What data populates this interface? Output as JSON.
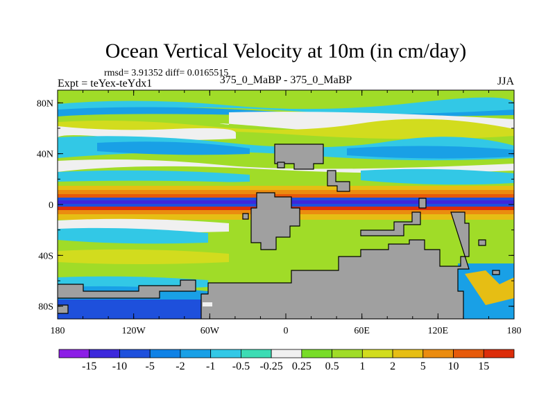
{
  "chart_data": {
    "type": "heatmap",
    "title": "Ocean Vertical Velocity at 10m (in cm/day)",
    "stats_line": "rmsd= 3.91352 diff= 0.0165515",
    "left_label": "Expt = teYex-teYdx1",
    "center_label": "375_0_MaBP - 375_0_MaBP",
    "right_label": "JJA",
    "x_ticks": [
      "180",
      "120W",
      "60W",
      "0",
      "60E",
      "120E",
      "180"
    ],
    "y_ticks": [
      "80N",
      "40N",
      "0",
      "40S",
      "80S"
    ],
    "xlim": [
      -180,
      180
    ],
    "ylim": [
      -90,
      90
    ],
    "colorbar": {
      "labels": [
        "-15",
        "-10",
        "-5",
        "-2",
        "-1",
        "-0.5",
        "-0.25",
        "0.25",
        "0.5",
        "1",
        "2",
        "5",
        "10",
        "15"
      ],
      "colors": [
        "#8c1ee6",
        "#3c28dc",
        "#1e50dc",
        "#0f82e6",
        "#19a0e6",
        "#32c8e6",
        "#3cdcb4",
        "#f0f0f0",
        "#78dc28",
        "#a0dc28",
        "#d2dc1e",
        "#e6be14",
        "#eb8c0f",
        "#e65a0a",
        "#dc2d0a"
      ]
    },
    "land_color": "#a0a0a0"
  }
}
